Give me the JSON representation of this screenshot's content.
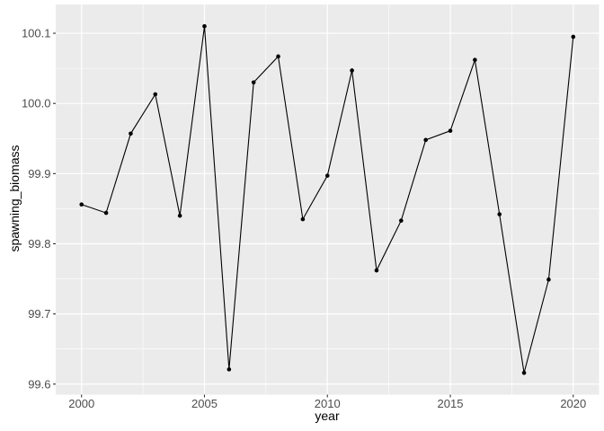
{
  "chart_data": {
    "type": "line",
    "title": "",
    "xlabel": "year",
    "ylabel": "spawning_biomass",
    "legend": "none",
    "grid": "major+minor",
    "x": [
      2000,
      2001,
      2002,
      2003,
      2004,
      2005,
      2006,
      2007,
      2008,
      2009,
      2010,
      2011,
      2012,
      2013,
      2014,
      2015,
      2016,
      2017,
      2018,
      2019,
      2020
    ],
    "series": [
      {
        "name": "spawning_biomass",
        "values": [
          99.856,
          99.844,
          99.957,
          100.013,
          99.84,
          100.11,
          99.621,
          100.03,
          100.067,
          99.835,
          99.897,
          100.047,
          99.762,
          99.833,
          99.948,
          99.961,
          100.062,
          99.842,
          99.616,
          99.749,
          100.095
        ]
      }
    ],
    "xlim": [
      1998.95,
      2021.05
    ],
    "ylim": [
      99.585,
      100.141
    ],
    "x_ticks": {
      "major": [
        2000,
        2005,
        2010,
        2015,
        2020
      ],
      "labels": [
        "2000",
        "2005",
        "2010",
        "2015",
        "2020"
      ],
      "minor": [
        2002.5,
        2007.5,
        2012.5,
        2017.5
      ]
    },
    "y_ticks": {
      "major": [
        99.6,
        99.7,
        99.8,
        99.9,
        100.0,
        100.1
      ],
      "labels": [
        "99.6",
        "99.7",
        "99.8",
        "99.9",
        "100.0",
        "100.1"
      ],
      "minor": [
        99.65,
        99.75,
        99.85,
        99.95,
        100.05
      ]
    },
    "style": {
      "panel_bg": "#EBEBEB",
      "grid_color": "#FFFFFF",
      "line_color": "#000000",
      "point_color": "#000000",
      "tick_mark_color": "#333333",
      "tick_label_color": "#4D4D4D",
      "axis_title_color": "#000000",
      "marker": "circle"
    }
  }
}
